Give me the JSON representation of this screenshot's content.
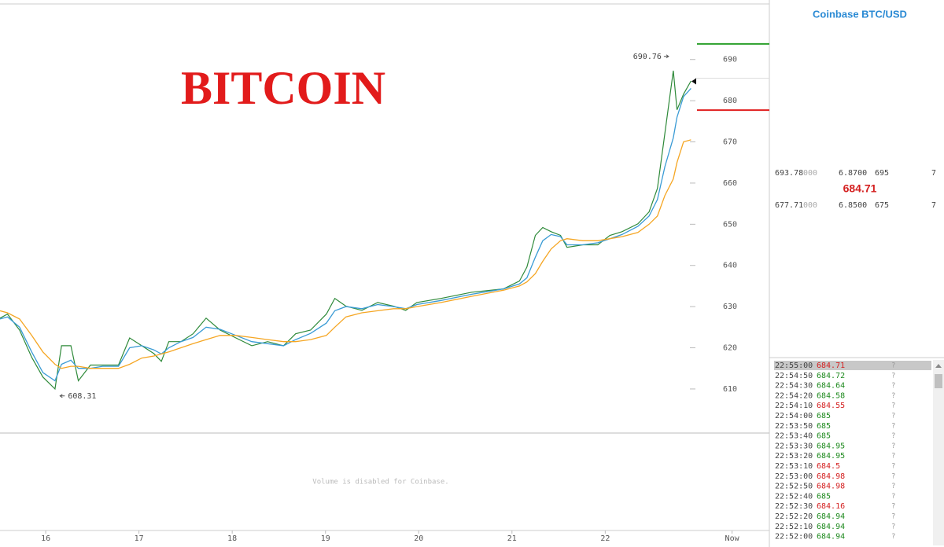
{
  "header": {
    "title": "BITCOIN"
  },
  "chart_data": {
    "type": "line",
    "x": [
      15.51,
      15.59,
      15.72,
      15.85,
      15.97,
      16.1,
      16.17,
      16.27,
      16.35,
      16.48,
      16.61,
      16.78,
      16.9,
      17.03,
      17.16,
      17.24,
      17.32,
      17.45,
      17.58,
      17.72,
      17.87,
      18.04,
      18.21,
      18.38,
      18.55,
      18.68,
      18.84,
      19.01,
      19.1,
      19.22,
      19.39,
      19.56,
      19.73,
      19.86,
      19.98,
      20.24,
      20.57,
      20.91,
      21.08,
      21.16,
      21.25,
      21.33,
      21.42,
      21.52,
      21.59,
      21.76,
      21.92,
      22.05,
      22.18,
      22.35,
      22.47,
      22.56,
      22.64,
      22.73,
      22.77,
      22.84,
      22.92
    ],
    "series": [
      {
        "color": "#2f8a3a",
        "values": [
          627.2,
          628.2,
          624.3,
          617.7,
          612.9,
          610,
          620.5,
          620.5,
          612,
          615.8,
          615.8,
          615.8,
          622.4,
          620.5,
          618.6,
          616.7,
          621.5,
          621.5,
          623.4,
          627.2,
          624.3,
          622.4,
          620.5,
          621.5,
          620.5,
          623.4,
          624.3,
          628.2,
          632,
          630.1,
          629.1,
          631,
          630.1,
          629.1,
          631,
          632,
          633.5,
          634.3,
          636.2,
          639.6,
          647.3,
          649.2,
          648.2,
          647.3,
          644.4,
          645,
          645,
          647.3,
          648.2,
          650.1,
          653,
          658.7,
          672.1,
          687.3,
          677.8,
          681.6,
          684.8
        ]
      },
      {
        "color": "#3a9bd5",
        "values": [
          627,
          627.5,
          625,
          619,
          614,
          612,
          616,
          617,
          615,
          615,
          615.5,
          615.5,
          620,
          620.5,
          619.5,
          618.5,
          620,
          621.5,
          622.5,
          625,
          624.5,
          623,
          621.5,
          621,
          620.5,
          622,
          623.5,
          626,
          629,
          630,
          629.5,
          630.5,
          630,
          629.5,
          630.5,
          631.5,
          633,
          634.3,
          635.5,
          637,
          642,
          646,
          647.5,
          647,
          645,
          645,
          645.5,
          646.5,
          647.5,
          649.5,
          652,
          656,
          664,
          671,
          676,
          681,
          683
        ]
      },
      {
        "color": "#f5a623",
        "values": [
          629,
          628.5,
          627,
          623,
          619,
          616,
          615,
          615.5,
          615.5,
          615,
          615,
          615,
          616,
          617.5,
          618,
          618.5,
          619,
          620,
          621,
          622,
          623,
          623,
          622.5,
          622,
          621.5,
          621.5,
          622,
          623,
          625,
          627.5,
          628.5,
          629,
          629.5,
          629.5,
          630,
          631,
          632.5,
          634,
          635,
          636,
          638,
          641,
          644,
          646,
          646.5,
          646,
          646,
          646.5,
          647,
          648,
          650,
          652,
          657,
          661,
          665,
          670,
          670.5
        ]
      }
    ],
    "xlim": [
      15.51,
      23.76
    ],
    "xticks": [
      16,
      17,
      18,
      19,
      20,
      21,
      22,
      {
        "value": 23.36,
        "label": "Now"
      }
    ],
    "ylim": [
      599.3,
      703.5
    ],
    "yticks": [
      610,
      620,
      630,
      640,
      650,
      660,
      670,
      680,
      690
    ],
    "annotations": [
      {
        "label": "690.76",
        "x": 22.73,
        "y": 690.76,
        "side": "left"
      },
      {
        "label": "608.31",
        "x": 16.12,
        "y": 608.31,
        "side": "right"
      }
    ],
    "levels": [
      {
        "value": 693.78,
        "color": "#2ca02c"
      },
      {
        "value": 677.71,
        "color": "#e02020"
      }
    ],
    "last_price": 684.71,
    "volume_note": "Volume is disabled for Coinbase."
  },
  "order_book": {
    "title": "Coinbase BTC/USD",
    "asks": [
      [
        "693.78",
        "000",
        "6.8700",
        "695",
        "7"
      ]
    ],
    "last": "684.71",
    "bids": [
      [
        "677.71",
        "000",
        "6.8500",
        "675",
        "7"
      ]
    ]
  },
  "trades": [
    {
      "time": "22:55:00",
      "price": "684.71",
      "color": "#d42020",
      "flag": "?"
    },
    {
      "time": "22:54:50",
      "price": "684.72",
      "color": "#1e8a1e",
      "flag": "?"
    },
    {
      "time": "22:54:30",
      "price": "684.64",
      "color": "#1e8a1e",
      "flag": "?"
    },
    {
      "time": "22:54:20",
      "price": "684.58",
      "color": "#1e8a1e",
      "flag": "?"
    },
    {
      "time": "22:54:10",
      "price": "684.55",
      "color": "#d42020",
      "flag": "?"
    },
    {
      "time": "22:54:00",
      "price": "685",
      "color": "#1e8a1e",
      "flag": "?"
    },
    {
      "time": "22:53:50",
      "price": "685",
      "color": "#1e8a1e",
      "flag": "?"
    },
    {
      "time": "22:53:40",
      "price": "685",
      "color": "#1e8a1e",
      "flag": "?"
    },
    {
      "time": "22:53:30",
      "price": "684.95",
      "color": "#1e8a1e",
      "flag": "?"
    },
    {
      "time": "22:53:20",
      "price": "684.95",
      "color": "#1e8a1e",
      "flag": "?"
    },
    {
      "time": "22:53:10",
      "price": "684.5",
      "color": "#d42020",
      "flag": "?"
    },
    {
      "time": "22:53:00",
      "price": "684.98",
      "color": "#d42020",
      "flag": "?"
    },
    {
      "time": "22:52:50",
      "price": "684.98",
      "color": "#d42020",
      "flag": "?"
    },
    {
      "time": "22:52:40",
      "price": "685",
      "color": "#1e8a1e",
      "flag": "?"
    },
    {
      "time": "22:52:30",
      "price": "684.16",
      "color": "#d42020",
      "flag": "?"
    },
    {
      "time": "22:52:20",
      "price": "684.94",
      "color": "#1e8a1e",
      "flag": "?"
    },
    {
      "time": "22:52:10",
      "price": "684.94",
      "color": "#1e8a1e",
      "flag": "?"
    },
    {
      "time": "22:52:00",
      "price": "684.94",
      "color": "#1e8a1e",
      "flag": "?"
    }
  ]
}
